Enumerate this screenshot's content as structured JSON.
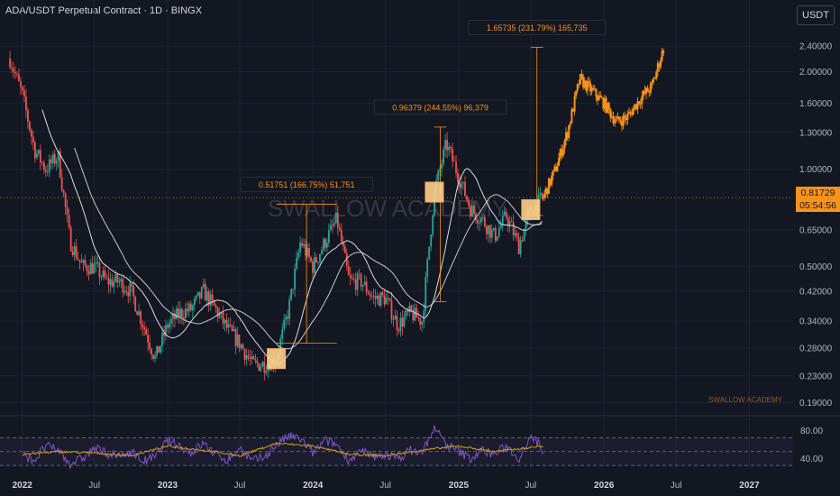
{
  "header": {
    "symbol_title": "ADA/USDT Perpetual Contract · 1D · BINGX",
    "currency_button": "USDT"
  },
  "watermark": "SWALLOW ACADEMY",
  "signature": "SWALLOW ACADEMY",
  "current_price": {
    "value": "0.81729",
    "countdown": "05:54:56"
  },
  "colors": {
    "background": "#131722",
    "up": "#26a69a",
    "down": "#ef5350",
    "projection": "#f7931a",
    "ma": "#e6e6e6",
    "rsi": "#7e57c2",
    "rsi_signal": "#d4a017",
    "marker": "#ffd08a"
  },
  "chart_data": [
    {
      "type": "line",
      "title": "",
      "scale": "log",
      "y_ticks": [
        "2.40000",
        "2.00000",
        "1.60000",
        "1.30000",
        "1.00000",
        "0.81729",
        "0.65000",
        "0.50000",
        "0.42000",
        "0.34000",
        "0.28000",
        "0.23000",
        "0.19000"
      ],
      "y_tick_values": [
        2.4,
        2.0,
        1.6,
        1.3,
        1.0,
        0.81729,
        0.65,
        0.5,
        0.42,
        0.34,
        0.28,
        0.23,
        0.19
      ],
      "x_ticks": [
        "2022",
        "Jul",
        "2023",
        "Jul",
        "2024",
        "Jul",
        "2025",
        "Jul",
        "2026",
        "Jul",
        "2027"
      ],
      "x_tick_values": [
        "2022-01",
        "2022-07",
        "2023-01",
        "2023-07",
        "2024-01",
        "2024-07",
        "2025-01",
        "2025-07",
        "2026-01",
        "2026-07",
        "2027-01"
      ],
      "ylim": [
        0.18,
        2.75
      ],
      "series": [
        {
          "role": "price",
          "x": [
            "2021-12",
            "2022-01",
            "2022-02",
            "2022-03",
            "2022-04",
            "2022-05",
            "2022-06",
            "2022-07",
            "2022-08",
            "2022-09",
            "2022-10",
            "2022-11",
            "2022-12",
            "2023-01",
            "2023-02",
            "2023-03",
            "2023-04",
            "2023-05",
            "2023-06",
            "2023-07",
            "2023-08",
            "2023-09",
            "2023-10",
            "2023-11",
            "2023-12",
            "2024-01",
            "2024-02",
            "2024-03",
            "2024-04",
            "2024-05",
            "2024-06",
            "2024-07",
            "2024-08",
            "2024-09",
            "2024-10",
            "2024-11",
            "2024-12",
            "2025-01",
            "2025-02",
            "2025-03",
            "2025-04",
            "2025-05",
            "2025-06",
            "2025-07",
            "2025-08"
          ],
          "y": [
            2.2,
            1.7,
            1.15,
            1.0,
            1.1,
            0.6,
            0.5,
            0.5,
            0.45,
            0.45,
            0.42,
            0.33,
            0.26,
            0.33,
            0.36,
            0.37,
            0.42,
            0.37,
            0.32,
            0.29,
            0.25,
            0.25,
            0.26,
            0.37,
            0.6,
            0.5,
            0.6,
            0.7,
            0.45,
            0.45,
            0.4,
            0.4,
            0.33,
            0.36,
            0.34,
            0.85,
            1.2,
            0.95,
            0.75,
            0.7,
            0.62,
            0.72,
            0.58,
            0.75,
            0.81729
          ]
        },
        {
          "role": "projection",
          "x": [
            "2025-08",
            "2025-09",
            "2025-10",
            "2025-11",
            "2025-12",
            "2026-01",
            "2026-02",
            "2026-03",
            "2026-04",
            "2026-05",
            "2026-06"
          ],
          "y": [
            0.81729,
            1.0,
            1.3,
            1.9,
            1.75,
            1.6,
            1.4,
            1.45,
            1.65,
            1.8,
            2.4
          ]
        }
      ],
      "annotations": [
        {
          "label": "0.51751 (166.75%) 51,751",
          "from_date": "2023-10",
          "to_date": "2024-03",
          "from": 0.29,
          "to": 0.78
        },
        {
          "label": "0.96379 (244.55%) 96,379",
          "from_date": "2024-11",
          "to_date": "2024-12",
          "from": 0.39,
          "to": 1.35
        },
        {
          "label": "1.65735 (231.79%) 165,735",
          "from_date": "2025-07",
          "to_date": "2025-08",
          "from": 0.72,
          "to": 2.38
        }
      ],
      "markers": [
        "2023-10",
        "2024-11",
        "2025-07"
      ]
    },
    {
      "type": "line",
      "title": "",
      "y_ticks": [
        "80.00",
        "40.00"
      ],
      "ylim": [
        25,
        90
      ],
      "band": [
        30,
        70
      ],
      "series": [
        {
          "role": "rsi",
          "x": [
            "2022-01",
            "2022-02",
            "2022-03",
            "2022-04",
            "2022-05",
            "2022-06",
            "2022-07",
            "2022-08",
            "2022-09",
            "2022-10",
            "2022-11",
            "2022-12",
            "2023-01",
            "2023-02",
            "2023-03",
            "2023-04",
            "2023-05",
            "2023-06",
            "2023-07",
            "2023-08",
            "2023-09",
            "2023-10",
            "2023-11",
            "2023-12",
            "2024-01",
            "2024-02",
            "2024-03",
            "2024-04",
            "2024-05",
            "2024-06",
            "2024-07",
            "2024-08",
            "2024-09",
            "2024-10",
            "2024-11",
            "2024-12",
            "2025-01",
            "2025-02",
            "2025-03",
            "2025-04",
            "2025-05",
            "2025-06",
            "2025-07",
            "2025-08"
          ],
          "y": [
            45,
            38,
            58,
            52,
            33,
            40,
            55,
            48,
            42,
            50,
            36,
            42,
            66,
            58,
            48,
            62,
            46,
            38,
            55,
            36,
            42,
            60,
            72,
            68,
            48,
            66,
            60,
            38,
            50,
            42,
            46,
            40,
            52,
            48,
            85,
            60,
            50,
            40,
            52,
            46,
            58,
            40,
            75,
            52
          ]
        },
        {
          "role": "rsi_ma",
          "x": [
            "2022-01",
            "2022-04",
            "2022-07",
            "2022-10",
            "2023-01",
            "2023-04",
            "2023-07",
            "2023-10",
            "2024-01",
            "2024-04",
            "2024-07",
            "2024-10",
            "2025-01",
            "2025-04",
            "2025-08"
          ],
          "y": [
            46,
            50,
            48,
            44,
            58,
            52,
            44,
            62,
            58,
            46,
            44,
            52,
            58,
            50,
            58
          ]
        }
      ]
    }
  ]
}
